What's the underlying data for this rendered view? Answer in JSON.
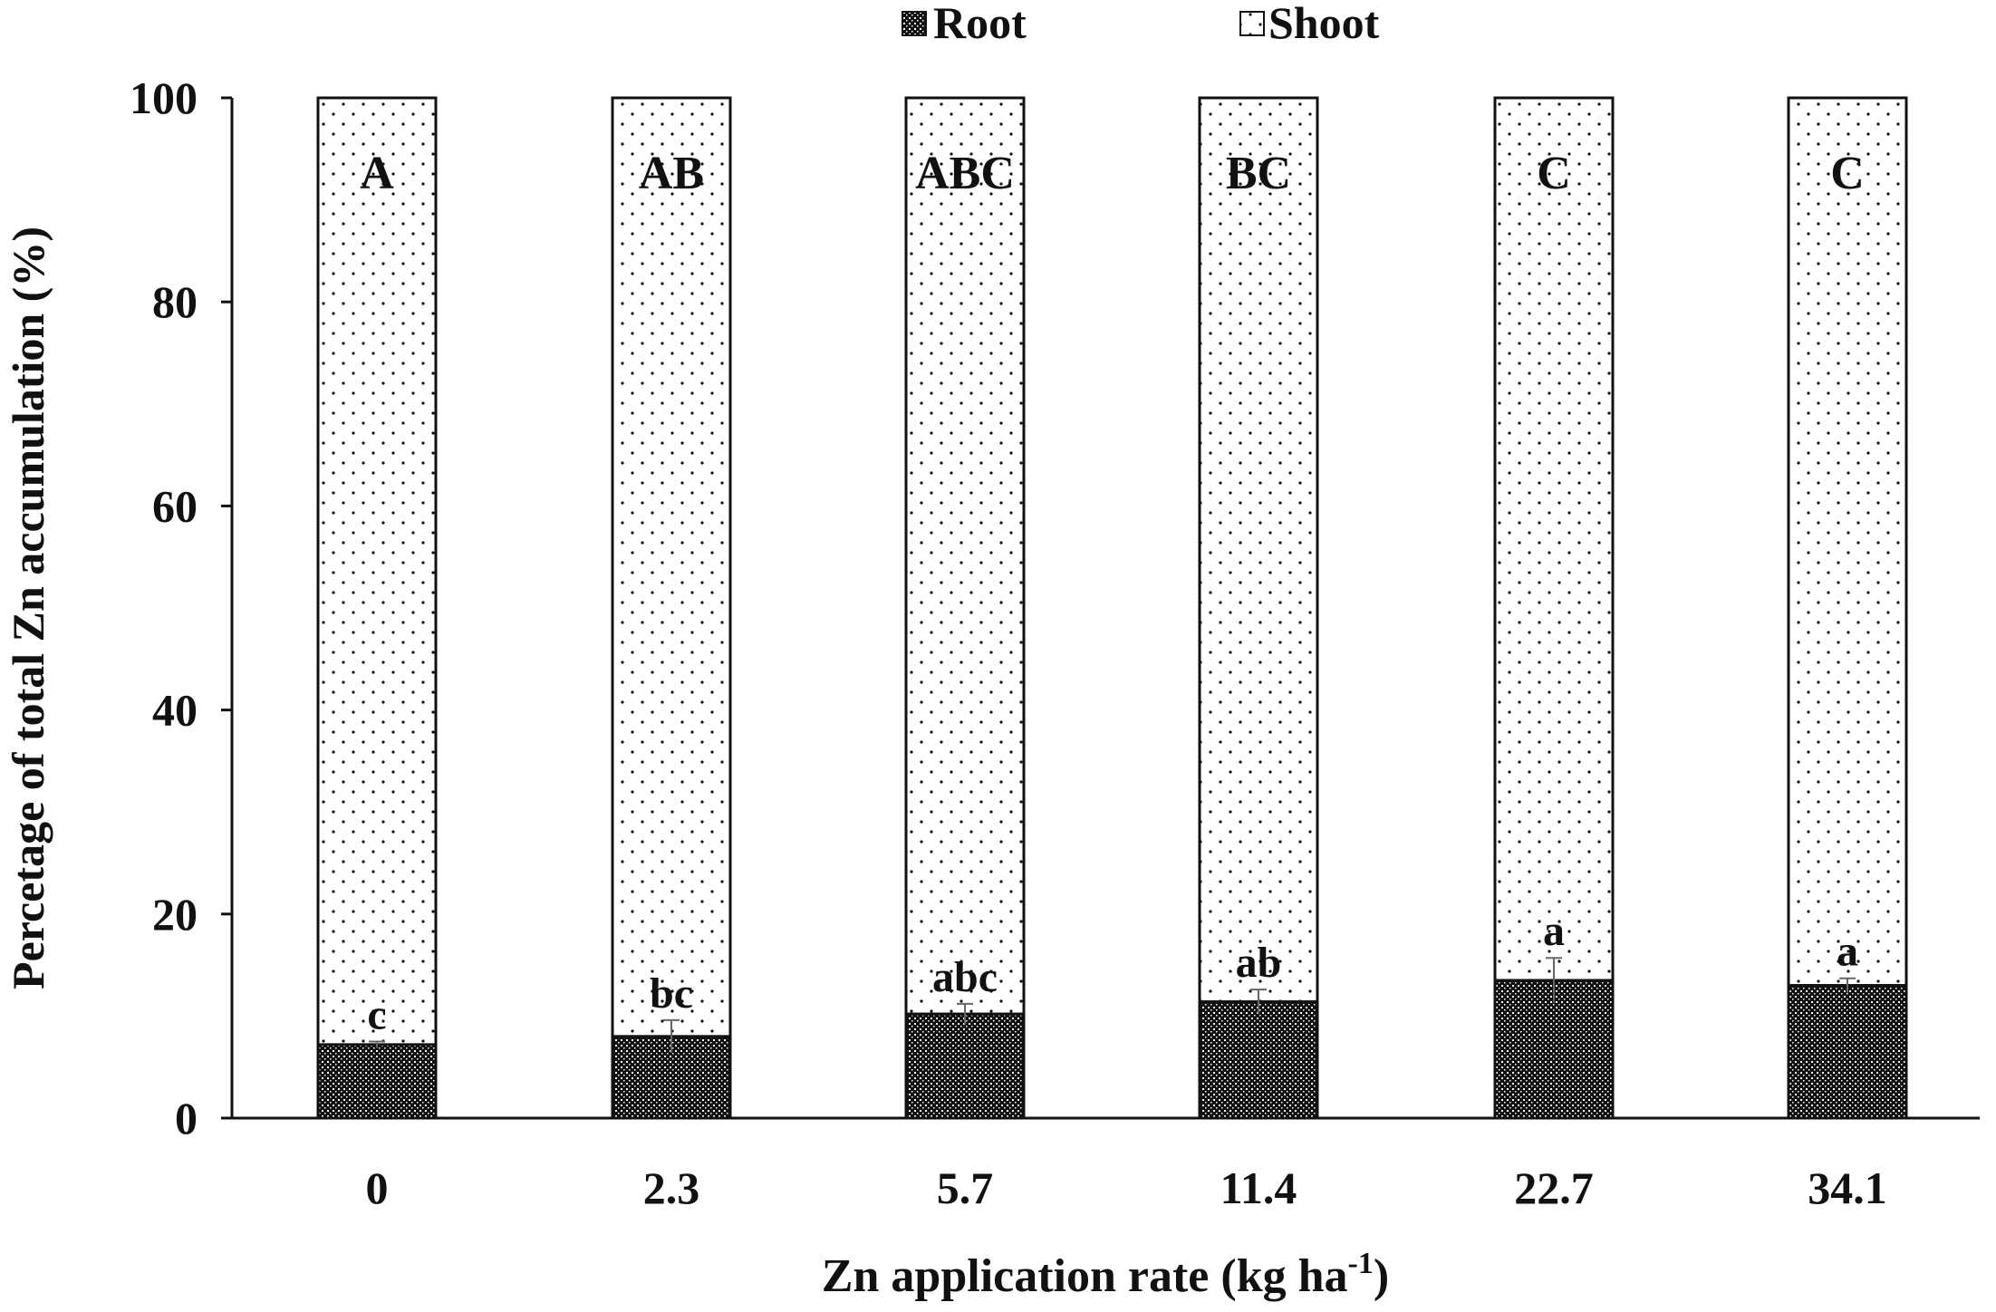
{
  "chart_data": {
    "type": "bar",
    "stacked": true,
    "categories": [
      "0",
      "2.3",
      "5.7",
      "11.4",
      "22.7",
      "34.1"
    ],
    "series": [
      {
        "name": "Root",
        "values": [
          7.2,
          8.0,
          10.2,
          11.4,
          13.5,
          13.0
        ],
        "errors": [
          0.3,
          1.6,
          1.0,
          1.2,
          2.2,
          0.7
        ],
        "letters": [
          "c",
          "bc",
          "abc",
          "ab",
          "a",
          "a"
        ]
      },
      {
        "name": "Shoot",
        "values": [
          92.8,
          92.0,
          89.8,
          88.6,
          86.5,
          87.0
        ],
        "letters": [
          "A",
          "AB",
          "ABC",
          "BC",
          "C",
          "C"
        ]
      }
    ],
    "xlabel": "Zn application rate (kg ha",
    "xlabel_sup": "-1",
    "xlabel_suffix": ")",
    "ylabel": "Percetage of total Zn accumulation (%)",
    "ylim": [
      0,
      100
    ],
    "yticks": [
      "0",
      "20",
      "40",
      "60",
      "80",
      "100"
    ],
    "grid": false,
    "legend_position": "top-center"
  }
}
